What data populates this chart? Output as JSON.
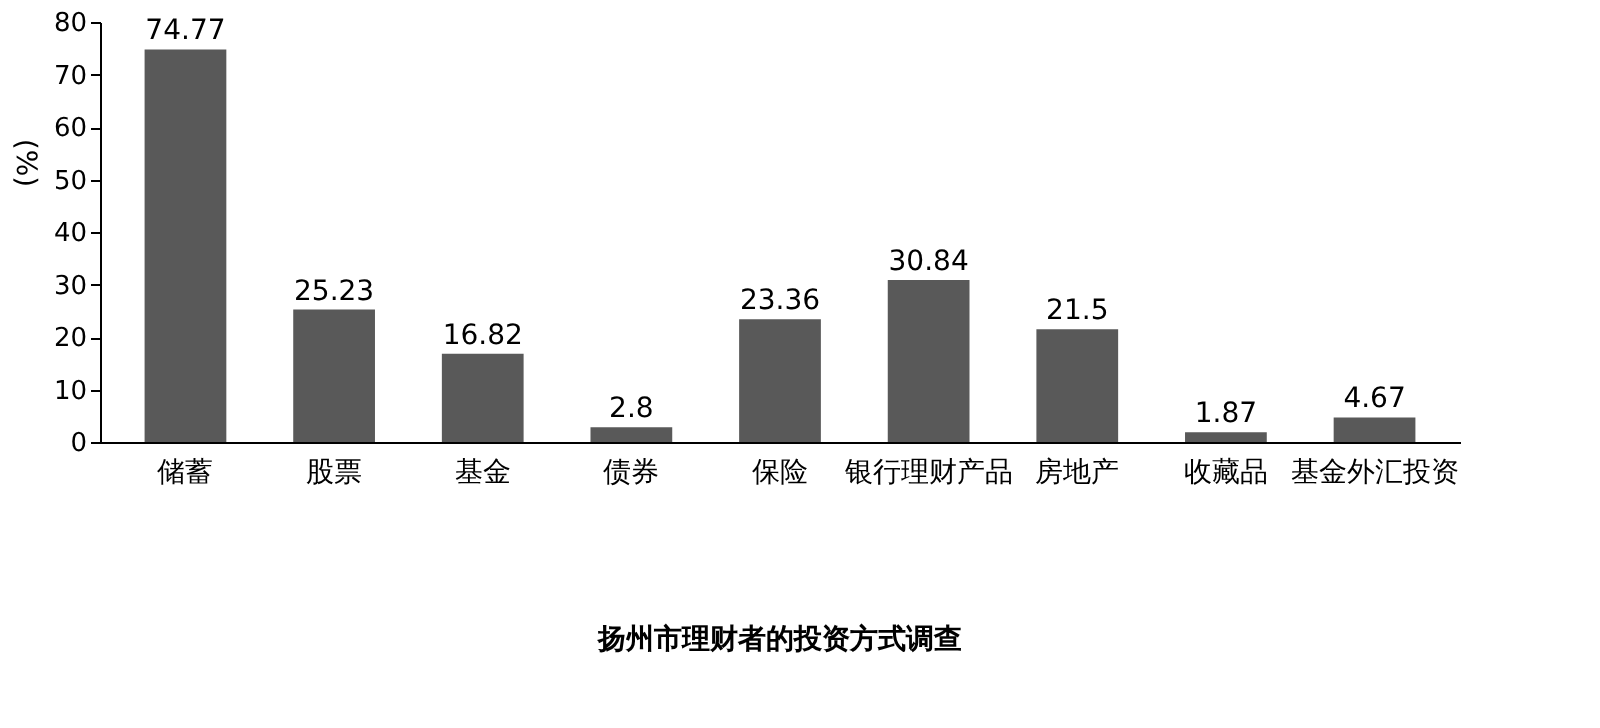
{
  "chart_data": {
    "type": "bar",
    "title": "扬州市理财者的投资方式调查",
    "ylabel": "(%)",
    "categories": [
      "储蓄",
      "股票",
      "基金",
      "债券",
      "保险",
      "银行理财产品",
      "房地产",
      "收藏品",
      "基金外汇投资"
    ],
    "values": [
      74.77,
      25.23,
      16.82,
      2.8,
      23.36,
      30.84,
      21.5,
      1.87,
      4.67
    ],
    "color": "#595959",
    "ylim": [
      0,
      80
    ],
    "yticks": [
      0,
      10,
      20,
      30,
      40,
      50,
      60,
      70,
      80
    ],
    "grid": false,
    "data_labels": true
  }
}
